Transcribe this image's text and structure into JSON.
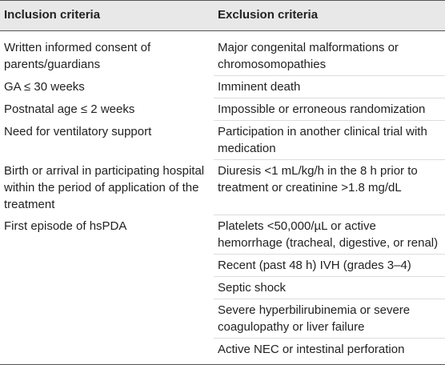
{
  "table": {
    "header": [
      "Inclusion criteria",
      "Exclusion criteria"
    ],
    "rows": [
      {
        "inclusion": "Written informed consent of parents/guardians",
        "exclusion": "Major congenital malformations or chromosomopathies"
      },
      {
        "inclusion": "GA ≤ 30 weeks",
        "exclusion": "Imminent death"
      },
      {
        "inclusion": "Postnatal age ≤ 2 weeks",
        "exclusion": "Impossible or erroneous randomization"
      },
      {
        "inclusion": "Need for ventilatory support",
        "exclusion": "Participation in another clinical trial with medication"
      },
      {
        "inclusion": "Birth or arrival in participating hospital within the period of application of the treatment",
        "exclusion": "Diuresis <1 mL/kg/h in the 8 h prior to treatment or creatinine >1.8 mg/dL"
      },
      {
        "inclusion": "First episode of hsPDA",
        "exclusion": "Platelets <50,000/µL or active hemorrhage (tracheal, digestive, or renal)"
      },
      {
        "exclusion": "Recent (past 48 h) IVH (grades 3–4)"
      },
      {
        "exclusion": "Septic shock"
      },
      {
        "exclusion": "Severe hyperbilirubinemia or severe coagulopathy or liver failure"
      },
      {
        "exclusion": "Active NEC or intestinal perforation"
      }
    ]
  }
}
